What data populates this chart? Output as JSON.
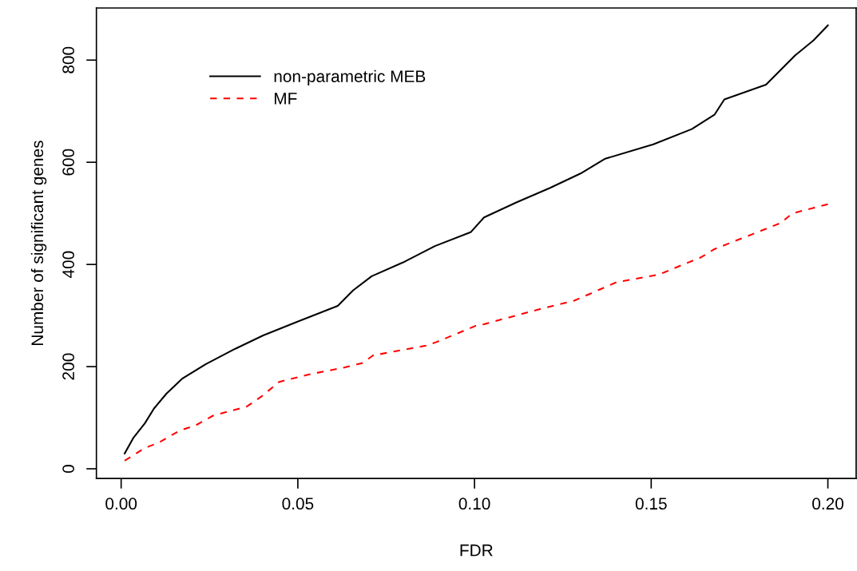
{
  "chart_data": {
    "type": "line",
    "xlabel": "FDR",
    "ylabel": "Number of significant genes",
    "xlim": [
      -0.007,
      0.208
    ],
    "xticks": [
      {
        "value": 0,
        "label": "0.00"
      },
      {
        "value": 0.05,
        "label": "0.05"
      },
      {
        "value": 0.1,
        "label": "0.10"
      },
      {
        "value": 0.15,
        "label": "0.15"
      },
      {
        "value": 0.2,
        "label": "0.20"
      }
    ],
    "ylim": [
      -19,
      902
    ],
    "yticks": [
      0,
      200,
      400,
      600,
      800
    ],
    "grid": false,
    "legend": "top left",
    "marker": "none",
    "series": [
      {
        "name": "non-parametric MEB",
        "color": "#000000",
        "line_style": "solid",
        "x": [
          0.001,
          0.0034,
          0.0067,
          0.0093,
          0.0128,
          0.0172,
          0.024,
          0.0323,
          0.0402,
          0.0495,
          0.0613,
          0.0656,
          0.0709,
          0.0798,
          0.0888,
          0.0989,
          0.1027,
          0.1117,
          0.1214,
          0.13,
          0.137,
          0.1506,
          0.1615,
          0.1679,
          0.1707,
          0.1825,
          0.1907,
          0.196,
          0.2
        ],
        "values": [
          30,
          60,
          89,
          118,
          147,
          176,
          205,
          235,
          261,
          287,
          319,
          349,
          377,
          404,
          436,
          463,
          492,
          521,
          550,
          578,
          607,
          635,
          665,
          693,
          723,
          752,
          809,
          839,
          868
        ]
      },
      {
        "name": "MF",
        "color": "#ff0000",
        "line_style": "dashed",
        "x": [
          0.001,
          0.0068,
          0.0106,
          0.0166,
          0.0211,
          0.026,
          0.0356,
          0.0398,
          0.0447,
          0.0533,
          0.0623,
          0.0683,
          0.0713,
          0.0863,
          0.0892,
          0.1004,
          0.1027,
          0.1192,
          0.1282,
          0.1401,
          0.1521,
          0.1641,
          0.1679,
          0.1866,
          0.19,
          0.2
        ],
        "values": [
          16,
          41,
          51,
          75,
          85,
          104,
          122,
          142,
          170,
          185,
          197,
          207,
          222,
          241,
          248,
          280,
          283,
          314,
          329,
          365,
          380,
          414,
          430,
          481,
          500,
          518
        ]
      }
    ]
  }
}
